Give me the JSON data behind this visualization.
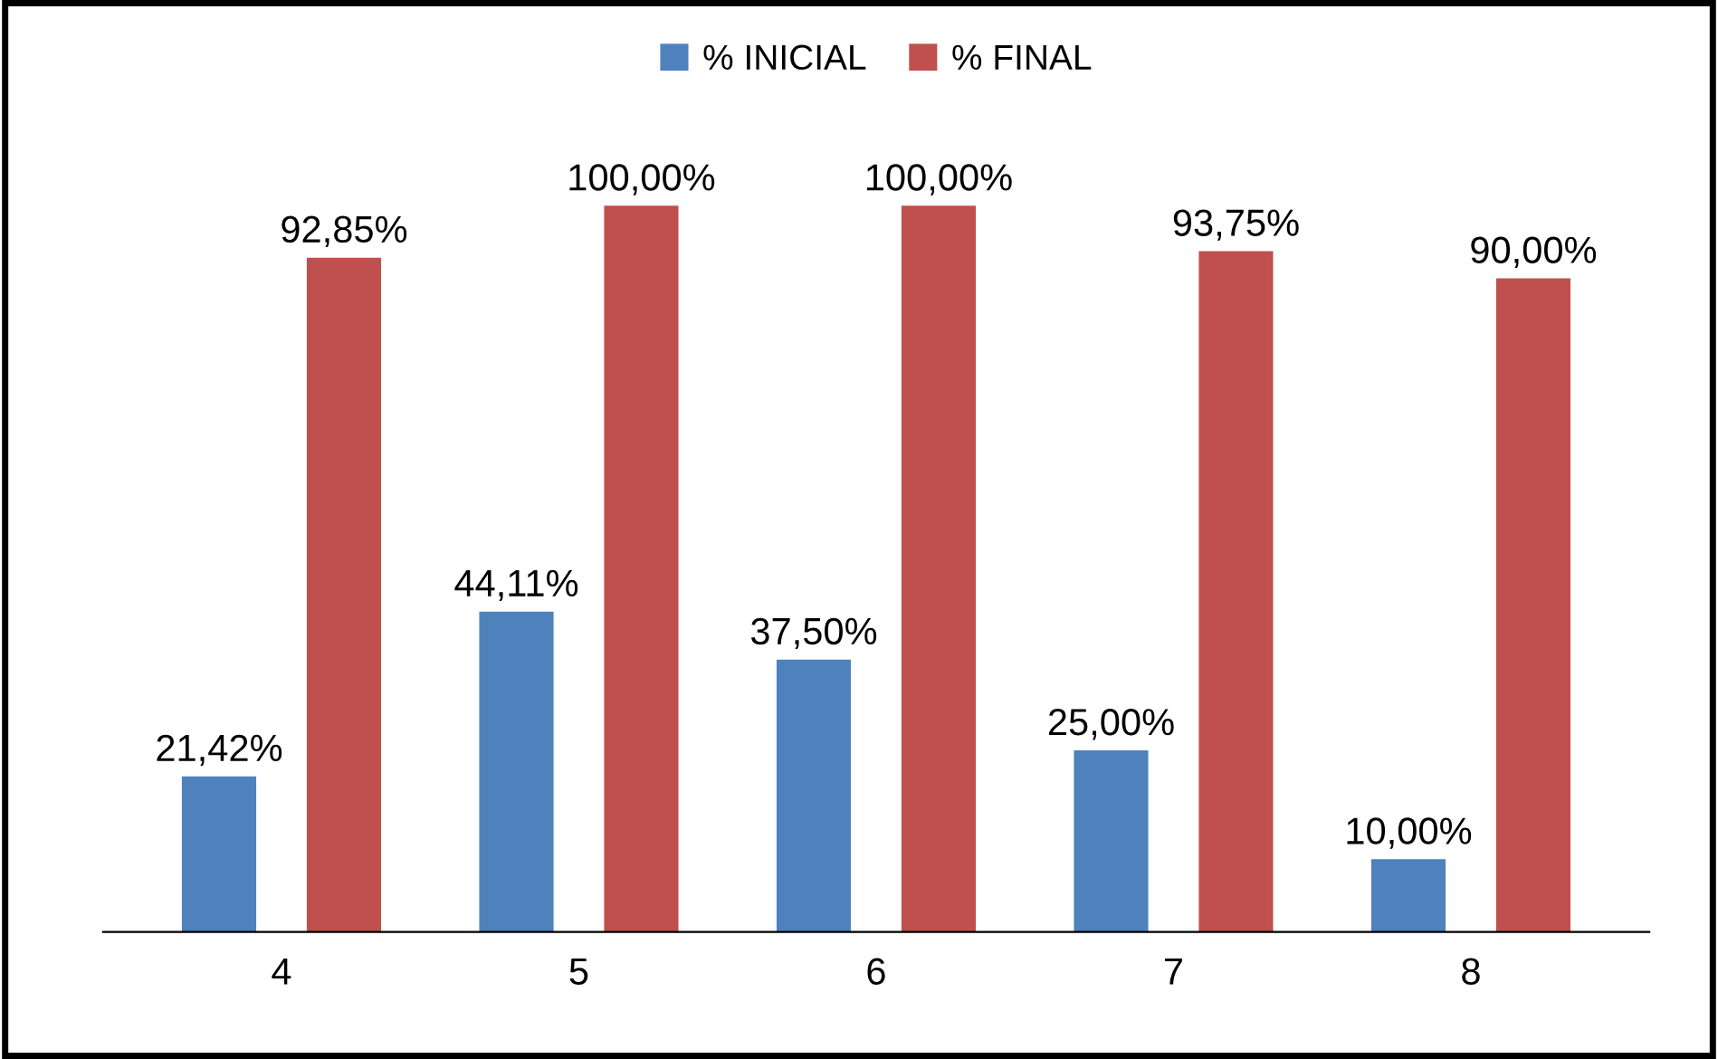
{
  "chart_data": {
    "type": "bar",
    "categories": [
      "4",
      "5",
      "6",
      "7",
      "8"
    ],
    "series": [
      {
        "name": "% INICIAL",
        "color": "#4f81bd",
        "values": [
          21.42,
          44.11,
          37.5,
          25.0,
          10.0
        ],
        "value_labels": [
          "21,42%",
          "44,11%",
          "37,50%",
          "25,00%",
          "10,00%"
        ]
      },
      {
        "name": "% FINAL",
        "color": "#c0504d",
        "values": [
          92.85,
          100.0,
          100.0,
          93.75,
          90.0
        ],
        "value_labels": [
          "92,85%",
          "100,00%",
          "100,00%",
          "93,75%",
          "90,00%"
        ]
      }
    ],
    "legend": "top",
    "grid": false
  }
}
